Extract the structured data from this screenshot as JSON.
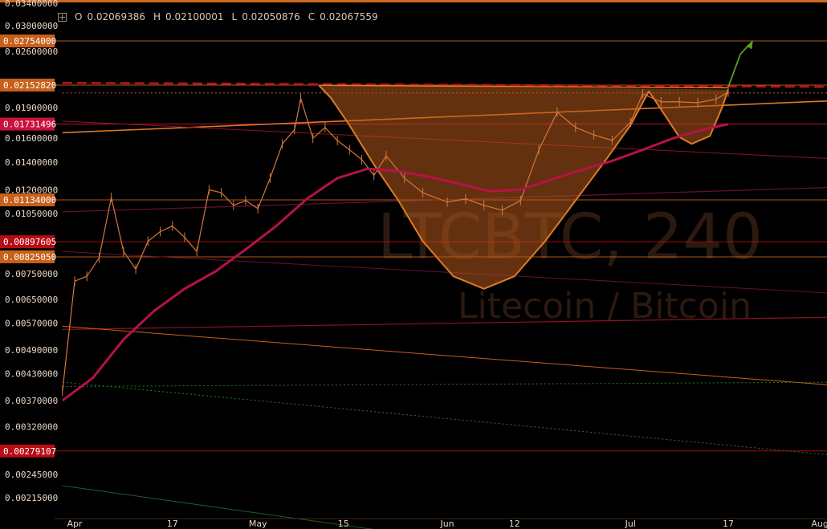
{
  "header": {
    "ohlc": [
      {
        "key": "O",
        "value": "0.02069386"
      },
      {
        "key": "H",
        "value": "0.02100001"
      },
      {
        "key": "L",
        "value": "0.02050876"
      },
      {
        "key": "C",
        "value": "0.02067559"
      }
    ]
  },
  "watermark": {
    "symbol": "LTCBTC, 240",
    "name": "Litecoin / Bitcoin"
  },
  "colors": {
    "background": "#000000",
    "candle": "#d4783a",
    "price_line": "#e07a24",
    "ma": "#b5124a",
    "fill": "#b45a1c",
    "label_orange": "#c8601a",
    "label_red": "#b80c14",
    "label_magenta": "#c8123c",
    "target_arrow": "#5aa022"
  },
  "chart_data": {
    "type": "line",
    "title": "",
    "xlabel": "",
    "ylabel": "",
    "ylim": [
      0.0018,
      0.034
    ],
    "price_axis_ticks": [
      "0.03400000",
      "0.03000000",
      "0.02600000",
      "0.01900000",
      "0.01600000",
      "0.01400000",
      "0.01200000",
      "0.01050000",
      "0.00750000",
      "0.00650000",
      "0.00570000",
      "0.00490000",
      "0.00430000",
      "0.00370000",
      "0.00320000",
      "0.00245000",
      "0.00215000"
    ],
    "time_axis_ticks": [
      {
        "label": "Apr",
        "date": "2017-04-01"
      },
      {
        "label": "17",
        "date": "2017-04-17"
      },
      {
        "label": "May",
        "date": "2017-05-01"
      },
      {
        "label": "15",
        "date": "2017-05-15"
      },
      {
        "label": "Jun",
        "date": "2017-06-01"
      },
      {
        "label": "12",
        "date": "2017-06-12"
      },
      {
        "label": "Jul",
        "date": "2017-07-01"
      },
      {
        "label": "17",
        "date": "2017-07-17"
      },
      {
        "label": "Aug",
        "date": "2017-08-01"
      }
    ],
    "highlighted_levels": [
      {
        "label": "0.02754000",
        "value": 0.02754,
        "style": "orange"
      },
      {
        "label": "0.02152820",
        "value": 0.0215282,
        "style": "orange"
      },
      {
        "label": "0.01731496",
        "value": 0.01731496,
        "style": "magenta"
      },
      {
        "label": "0.01134000",
        "value": 0.01134,
        "style": "orange"
      },
      {
        "label": "0.00897605",
        "value": 0.00897605,
        "style": "red"
      },
      {
        "label": "0.00825050",
        "value": 0.0082505,
        "style": "orange"
      },
      {
        "label": "0.00279107",
        "value": 0.00279107,
        "style": "red"
      }
    ],
    "series": [
      {
        "values": [
          [
            "2017-03-30",
            0.0039
          ],
          [
            "2017-04-01",
            0.0072
          ],
          [
            "2017-04-03",
            0.0074
          ],
          [
            "2017-04-05",
            0.0082
          ],
          [
            "2017-04-07",
            0.0115
          ],
          [
            "2017-04-09",
            0.0085
          ],
          [
            "2017-04-11",
            0.0077
          ],
          [
            "2017-04-13",
            0.009
          ],
          [
            "2017-04-15",
            0.0095
          ],
          [
            "2017-04-17",
            0.0098
          ],
          [
            "2017-04-19",
            0.0092
          ],
          [
            "2017-04-21",
            0.0085
          ],
          [
            "2017-04-23",
            0.012
          ],
          [
            "2017-04-25",
            0.0118
          ],
          [
            "2017-04-27",
            0.011
          ],
          [
            "2017-04-29",
            0.0113
          ],
          [
            "2017-05-01",
            0.0108
          ],
          [
            "2017-05-03",
            0.0128
          ],
          [
            "2017-05-05",
            0.0155
          ],
          [
            "2017-05-07",
            0.0168
          ],
          [
            "2017-05-08",
            0.02
          ],
          [
            "2017-05-10",
            0.016
          ],
          [
            "2017-05-12",
            0.017
          ],
          [
            "2017-05-14",
            0.0158
          ],
          [
            "2017-05-16",
            0.015
          ],
          [
            "2017-05-18",
            0.0142
          ],
          [
            "2017-05-20",
            0.013
          ],
          [
            "2017-05-22",
            0.0145
          ],
          [
            "2017-05-25",
            0.0128
          ],
          [
            "2017-05-28",
            0.0118
          ],
          [
            "2017-06-01",
            0.0112
          ],
          [
            "2017-06-04",
            0.0114
          ],
          [
            "2017-06-07",
            0.011
          ],
          [
            "2017-06-10",
            0.0107
          ],
          [
            "2017-06-13",
            0.0113
          ],
          [
            "2017-06-16",
            0.015
          ],
          [
            "2017-06-19",
            0.0185
          ],
          [
            "2017-06-22",
            0.017
          ],
          [
            "2017-06-25",
            0.0163
          ],
          [
            "2017-06-28",
            0.0158
          ],
          [
            "2017-07-01",
            0.0175
          ],
          [
            "2017-07-03",
            0.0205
          ],
          [
            "2017-07-06",
            0.0196
          ],
          [
            "2017-07-09",
            0.0196
          ],
          [
            "2017-07-12",
            0.0195
          ],
          [
            "2017-07-15",
            0.0199
          ],
          [
            "2017-07-17",
            0.0207
          ]
        ]
      },
      {
        "values": [
          [
            "2017-03-30",
            0.0037
          ],
          [
            "2017-04-04",
            0.0042
          ],
          [
            "2017-04-09",
            0.0052
          ],
          [
            "2017-04-14",
            0.0061
          ],
          [
            "2017-04-19",
            0.0069
          ],
          [
            "2017-04-24",
            0.0076
          ],
          [
            "2017-04-29",
            0.0086
          ],
          [
            "2017-05-04",
            0.0098
          ],
          [
            "2017-05-09",
            0.0114
          ],
          [
            "2017-05-14",
            0.0128
          ],
          [
            "2017-05-19",
            0.0135
          ],
          [
            "2017-05-24",
            0.0133
          ],
          [
            "2017-05-29",
            0.0129
          ],
          [
            "2017-06-03",
            0.0124
          ],
          [
            "2017-06-08",
            0.0119
          ],
          [
            "2017-06-13",
            0.012
          ],
          [
            "2017-06-18",
            0.0127
          ],
          [
            "2017-06-23",
            0.0134
          ],
          [
            "2017-06-28",
            0.0141
          ],
          [
            "2017-07-03",
            0.015
          ],
          [
            "2017-07-08",
            0.016
          ],
          [
            "2017-07-13",
            0.0168
          ],
          [
            "2017-07-17",
            0.0173
          ]
        ]
      }
    ],
    "pattern": {
      "cup": [
        [
          "2017-05-11",
          0.0215
        ],
        [
          "2017-05-13",
          0.02
        ],
        [
          "2017-05-16",
          0.0172
        ],
        [
          "2017-05-20",
          0.0138
        ],
        [
          "2017-05-24",
          0.0113
        ],
        [
          "2017-05-28",
          0.009
        ],
        [
          "2017-06-02",
          0.0074
        ],
        [
          "2017-06-07",
          0.0069
        ],
        [
          "2017-06-12",
          0.0074
        ],
        [
          "2017-06-17",
          0.009
        ],
        [
          "2017-06-22",
          0.0113
        ],
        [
          "2017-06-27",
          0.0142
        ],
        [
          "2017-07-01",
          0.0172
        ],
        [
          "2017-07-04",
          0.0208
        ]
      ],
      "handle": [
        [
          "2017-07-04",
          0.0208
        ],
        [
          "2017-07-06",
          0.0188
        ],
        [
          "2017-07-09",
          0.0161
        ],
        [
          "2017-07-11",
          0.0155
        ],
        [
          "2017-07-14",
          0.0162
        ],
        [
          "2017-07-16",
          0.019
        ],
        [
          "2017-07-17",
          0.021
        ]
      ],
      "rim": [
        [
          "2017-05-11",
          0.0215
        ],
        [
          "2017-07-17",
          0.0212
        ]
      ],
      "target": [
        [
          "2017-07-17",
          0.0213
        ],
        [
          "2017-07-19",
          0.0256
        ],
        [
          "2017-07-21",
          0.0275
        ]
      ]
    },
    "trendlines": [
      {
        "color": "#e07a24",
        "width": 1.6,
        "points": [
          [
            "2017-03-30",
            0.0165
          ],
          [
            "2017-08-06",
            0.0198
          ]
        ]
      },
      {
        "color": "#c0141c",
        "width": 2.5,
        "dash": true,
        "points": [
          [
            "2017-03-30",
            0.0218
          ],
          [
            "2017-08-06",
            0.0213
          ]
        ]
      },
      {
        "color": "#d4783a",
        "width": 0.8,
        "dotted": true,
        "points": [
          [
            "2017-03-30",
            0.0206
          ],
          [
            "2017-08-06",
            0.0206
          ]
        ]
      },
      {
        "color": "#8b1420",
        "width": 1,
        "points": [
          [
            "2017-03-30",
            0.0176
          ],
          [
            "2017-08-06",
            0.0142
          ]
        ]
      },
      {
        "color": "#6a1030",
        "width": 1.2,
        "points": [
          [
            "2017-03-30",
            0.0106
          ],
          [
            "2017-08-06",
            0.0122
          ]
        ]
      },
      {
        "color": "#6a1030",
        "width": 1,
        "points": [
          [
            "2017-03-30",
            0.0085
          ],
          [
            "2017-08-06",
            0.0067
          ]
        ]
      },
      {
        "color": "#8b1420",
        "width": 1.2,
        "points": [
          [
            "2017-03-30",
            0.0055
          ],
          [
            "2017-08-06",
            0.0059
          ]
        ]
      },
      {
        "color": "#c8601a",
        "width": 1,
        "points": [
          [
            "2017-03-30",
            0.0056
          ],
          [
            "2017-08-06",
            0.004
          ]
        ]
      },
      {
        "color": "#2e7a2e",
        "width": 1,
        "dotted": true,
        "points": [
          [
            "2017-03-30",
            0.004
          ],
          [
            "2017-08-06",
            0.0041
          ]
        ]
      },
      {
        "color": "#2e7a2e",
        "width": 1,
        "dotted": true,
        "points": [
          [
            "2017-03-30",
            0.0041
          ],
          [
            "2017-08-06",
            0.0027
          ]
        ]
      },
      {
        "color": "#1f5a2a",
        "width": 1,
        "points": [
          [
            "2017-03-30",
            0.0023
          ],
          [
            "2017-05-20",
            0.0018
          ]
        ]
      }
    ]
  }
}
